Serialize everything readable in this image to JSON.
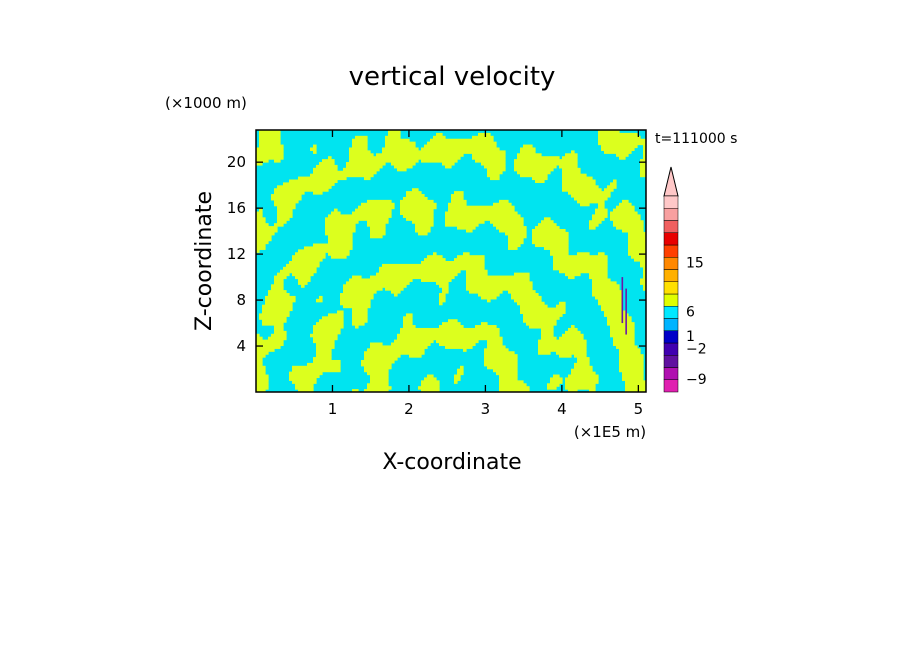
{
  "chart_data": {
    "type": "heatmap",
    "title": "vertical velocity",
    "xlabel": "X-coordinate",
    "ylabel": "Z-coordinate",
    "x_unit": "(×1E5 m)",
    "y_unit": "(×1000 m)",
    "time_label": "t=111000 s",
    "xlim": [
      0,
      5.1
    ],
    "ylim": [
      0,
      22.8
    ],
    "x_ticks": [
      1,
      2,
      3,
      4,
      5
    ],
    "y_ticks": [
      4,
      8,
      12,
      16,
      20
    ],
    "colorbar": {
      "levels": [
        -9,
        -2,
        1,
        6,
        15
      ],
      "tick_labels": [
        "15",
        "6",
        "1",
        "−2",
        "−9"
      ],
      "colors_bottom_to_top": [
        "#e020b0",
        "#b010b0",
        "#6010a0",
        "#4000b0",
        "#0000c8",
        "#00b4ff",
        "#00e8ff",
        "#e0ff00",
        "#ffe000",
        "#ffb000",
        "#ff8800",
        "#ff4000",
        "#e80000",
        "#f06060",
        "#f8a0a0",
        "#ffc8c8"
      ]
    },
    "field_colors": {
      "positive": "#dcff1e",
      "negative": "#00e4f0",
      "strong_negative": "#6a18a8"
    }
  }
}
